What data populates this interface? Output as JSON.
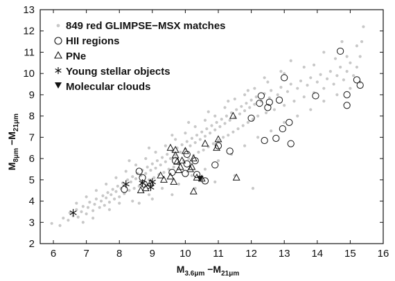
{
  "chart_data": {
    "type": "scatter",
    "title": "",
    "xlabel": {
      "main": "M",
      "sub1": "3.6μm",
      "mid": " −M",
      "sub2": "21μm"
    },
    "ylabel": {
      "main": "M",
      "sub1": "8μm",
      "mid": " −M",
      "sub2": "21μm"
    },
    "xlim": [
      5.6,
      16
    ],
    "ylim": [
      2,
      13
    ],
    "xticks": [
      6,
      7,
      8,
      9,
      10,
      11,
      12,
      13,
      14,
      15,
      16
    ],
    "yticks": [
      2,
      3,
      4,
      5,
      6,
      7,
      8,
      9,
      10,
      11,
      12,
      13
    ],
    "grid": false,
    "legend_position": "top-left",
    "legend": [
      {
        "label": "849 red GLIMPSE−MSX matches",
        "marker": "gray-dot"
      },
      {
        "label": "HII regions",
        "marker": "open-circle"
      },
      {
        "label": "PNe",
        "marker": "open-triangle"
      },
      {
        "label": "Young stellar objects",
        "marker": "asterisk"
      },
      {
        "label": "Molecular clouds",
        "marker": "filled-down-triangle"
      }
    ],
    "colors": {
      "background_points": "#c8c8c8",
      "markers": "#111111"
    },
    "series": [
      {
        "name": "849 red GLIMPSE−MSX matches",
        "marker": "gray-dot",
        "points": [
          [
            5.95,
            2.95
          ],
          [
            6.2,
            2.85
          ],
          [
            6.3,
            3.2
          ],
          [
            6.45,
            3.1
          ],
          [
            6.5,
            3.45
          ],
          [
            6.6,
            3.3
          ],
          [
            6.7,
            3.6
          ],
          [
            6.75,
            3.25
          ],
          [
            6.85,
            3.5
          ],
          [
            6.9,
            3.75
          ],
          [
            7.0,
            3.4
          ],
          [
            7.05,
            3.7
          ],
          [
            7.1,
            3.95
          ],
          [
            7.2,
            3.55
          ],
          [
            7.25,
            3.85
          ],
          [
            7.3,
            4.1
          ],
          [
            7.4,
            3.7
          ],
          [
            7.45,
            4.0
          ],
          [
            7.5,
            4.25
          ],
          [
            7.55,
            3.8
          ],
          [
            7.6,
            4.15
          ],
          [
            7.65,
            4.4
          ],
          [
            7.7,
            3.95
          ],
          [
            7.75,
            4.3
          ],
          [
            7.8,
            4.55
          ],
          [
            7.85,
            4.1
          ],
          [
            7.9,
            4.45
          ],
          [
            7.95,
            4.7
          ],
          [
            8.0,
            4.2
          ],
          [
            8.05,
            4.6
          ],
          [
            8.1,
            4.85
          ],
          [
            8.15,
            4.35
          ],
          [
            8.2,
            4.75
          ],
          [
            8.25,
            5.0
          ],
          [
            8.3,
            4.5
          ],
          [
            8.35,
            4.9
          ],
          [
            8.4,
            5.15
          ],
          [
            8.45,
            4.6
          ],
          [
            8.5,
            5.05
          ],
          [
            8.55,
            5.3
          ],
          [
            8.6,
            4.7
          ],
          [
            8.65,
            5.2
          ],
          [
            8.7,
            5.45
          ],
          [
            8.75,
            4.85
          ],
          [
            8.8,
            5.3
          ],
          [
            8.85,
            5.6
          ],
          [
            8.9,
            5.0
          ],
          [
            8.95,
            5.45
          ],
          [
            9.0,
            5.75
          ],
          [
            9.05,
            5.1
          ],
          [
            9.1,
            5.55
          ],
          [
            9.15,
            5.9
          ],
          [
            9.2,
            5.25
          ],
          [
            9.25,
            5.7
          ],
          [
            9.3,
            6.05
          ],
          [
            9.35,
            5.35
          ],
          [
            9.4,
            5.85
          ],
          [
            9.45,
            6.2
          ],
          [
            9.5,
            5.5
          ],
          [
            9.55,
            6.0
          ],
          [
            9.6,
            6.35
          ],
          [
            9.65,
            5.6
          ],
          [
            9.7,
            6.15
          ],
          [
            9.75,
            6.5
          ],
          [
            9.8,
            5.75
          ],
          [
            9.85,
            6.3
          ],
          [
            9.9,
            6.65
          ],
          [
            9.95,
            5.9
          ],
          [
            10.0,
            6.45
          ],
          [
            10.05,
            6.8
          ],
          [
            10.1,
            6.0
          ],
          [
            10.15,
            6.6
          ],
          [
            10.2,
            6.95
          ],
          [
            10.25,
            6.15
          ],
          [
            10.3,
            6.75
          ],
          [
            10.35,
            7.1
          ],
          [
            10.4,
            6.3
          ],
          [
            10.45,
            6.9
          ],
          [
            10.5,
            7.25
          ],
          [
            10.55,
            6.4
          ],
          [
            10.6,
            7.05
          ],
          [
            10.65,
            7.4
          ],
          [
            10.7,
            6.55
          ],
          [
            10.75,
            7.2
          ],
          [
            10.8,
            7.55
          ],
          [
            10.85,
            6.7
          ],
          [
            10.9,
            7.35
          ],
          [
            10.95,
            7.7
          ],
          [
            11.0,
            6.85
          ],
          [
            11.05,
            7.5
          ],
          [
            11.1,
            7.85
          ],
          [
            11.15,
            7.0
          ],
          [
            11.2,
            7.65
          ],
          [
            11.25,
            8.0
          ],
          [
            11.3,
            7.1
          ],
          [
            11.35,
            7.8
          ],
          [
            11.4,
            8.15
          ],
          [
            11.45,
            7.25
          ],
          [
            11.5,
            7.95
          ],
          [
            11.55,
            8.3
          ],
          [
            11.6,
            7.4
          ],
          [
            11.65,
            8.1
          ],
          [
            11.7,
            8.45
          ],
          [
            11.75,
            7.55
          ],
          [
            11.8,
            8.25
          ],
          [
            11.85,
            8.6
          ],
          [
            11.9,
            7.7
          ],
          [
            11.95,
            8.4
          ],
          [
            12.0,
            8.75
          ],
          [
            12.05,
            7.85
          ],
          [
            12.1,
            8.55
          ],
          [
            12.15,
            8.9
          ],
          [
            12.2,
            8.0
          ],
          [
            12.3,
            8.7
          ],
          [
            12.4,
            9.05
          ],
          [
            12.45,
            8.15
          ],
          [
            12.55,
            8.85
          ],
          [
            12.6,
            9.2
          ],
          [
            12.7,
            8.3
          ],
          [
            12.8,
            9.0
          ],
          [
            12.9,
            9.35
          ],
          [
            13.0,
            8.5
          ],
          [
            13.1,
            9.15
          ],
          [
            13.2,
            9.5
          ],
          [
            13.3,
            8.7
          ],
          [
            13.4,
            9.3
          ],
          [
            13.5,
            9.65
          ],
          [
            13.6,
            8.9
          ],
          [
            13.7,
            9.45
          ],
          [
            13.8,
            9.8
          ],
          [
            13.9,
            9.1
          ],
          [
            14.0,
            9.6
          ],
          [
            14.1,
            9.95
          ],
          [
            14.2,
            9.3
          ],
          [
            14.3,
            9.75
          ],
          [
            14.4,
            10.1
          ],
          [
            14.5,
            9.5
          ],
          [
            14.6,
            9.9
          ],
          [
            14.7,
            10.3
          ],
          [
            14.8,
            9.7
          ],
          [
            14.9,
            10.1
          ],
          [
            15.0,
            10.5
          ],
          [
            15.1,
            9.9
          ],
          [
            15.2,
            10.3
          ],
          [
            15.3,
            10.8
          ],
          [
            15.35,
            11.5
          ],
          [
            15.4,
            12.2
          ],
          [
            14.75,
            11.5
          ],
          [
            14.55,
            10.7
          ],
          [
            14.2,
            11.0
          ],
          [
            13.6,
            10.3
          ],
          [
            13.2,
            10.6
          ],
          [
            12.9,
            10.1
          ],
          [
            12.5,
            9.6
          ],
          [
            12.1,
            9.3
          ],
          [
            11.8,
            9.0
          ],
          [
            11.5,
            8.8
          ],
          [
            11.2,
            8.4
          ],
          [
            10.9,
            8.0
          ],
          [
            10.6,
            7.8
          ],
          [
            10.3,
            7.5
          ],
          [
            10.0,
            7.2
          ],
          [
            9.7,
            6.9
          ],
          [
            9.4,
            6.6
          ],
          [
            9.1,
            6.3
          ],
          [
            8.8,
            6.0
          ],
          [
            8.5,
            5.7
          ],
          [
            8.2,
            5.4
          ],
          [
            7.9,
            5.1
          ],
          [
            7.6,
            4.8
          ],
          [
            7.3,
            4.5
          ],
          [
            7.0,
            4.2
          ],
          [
            6.7,
            3.9
          ],
          [
            8.0,
            3.9
          ],
          [
            8.4,
            4.0
          ],
          [
            8.9,
            4.3
          ],
          [
            9.3,
            4.6
          ],
          [
            9.8,
            4.8
          ],
          [
            10.2,
            5.2
          ],
          [
            10.6,
            5.5
          ],
          [
            11.0,
            5.9
          ],
          [
            11.4,
            6.2
          ],
          [
            11.8,
            6.6
          ],
          [
            12.2,
            7.0
          ],
          [
            12.6,
            7.3
          ],
          [
            13.0,
            7.7
          ],
          [
            13.4,
            8.0
          ],
          [
            13.8,
            8.3
          ],
          [
            14.2,
            8.7
          ],
          [
            14.6,
            9.0
          ],
          [
            15.0,
            9.3
          ],
          [
            15.3,
            9.6
          ],
          [
            12.05,
            4.6
          ],
          [
            11.5,
            5.2
          ],
          [
            10.9,
            4.9
          ],
          [
            10.3,
            4.6
          ],
          [
            9.6,
            4.3
          ],
          [
            9.0,
            4.1
          ],
          [
            8.6,
            3.9
          ],
          [
            7.7,
            3.6
          ],
          [
            7.2,
            3.2
          ],
          [
            6.9,
            3.0
          ],
          [
            8.3,
            5.9
          ],
          [
            8.9,
            6.5
          ],
          [
            9.6,
            7.1
          ],
          [
            10.1,
            7.7
          ],
          [
            10.7,
            8.2
          ],
          [
            11.3,
            8.7
          ],
          [
            11.9,
            9.2
          ],
          [
            12.4,
            9.8
          ],
          [
            13.0,
            10.0
          ],
          [
            13.9,
            10.4
          ],
          [
            14.9,
            10.8
          ],
          [
            15.2,
            11.3
          ]
        ]
      },
      {
        "name": "HII regions",
        "marker": "open-circle",
        "points": [
          [
            8.15,
            4.55
          ],
          [
            8.6,
            5.4
          ],
          [
            8.7,
            5.1
          ],
          [
            8.75,
            4.8
          ],
          [
            9.6,
            5.35
          ],
          [
            9.7,
            5.9
          ],
          [
            10.0,
            5.3
          ],
          [
            10.05,
            5.75
          ],
          [
            10.05,
            6.2
          ],
          [
            10.3,
            5.9
          ],
          [
            10.35,
            5.25
          ],
          [
            10.6,
            4.95
          ],
          [
            10.9,
            5.7
          ],
          [
            11.0,
            6.6
          ],
          [
            11.35,
            6.35
          ],
          [
            12.0,
            7.9
          ],
          [
            12.25,
            8.6
          ],
          [
            12.3,
            8.95
          ],
          [
            12.4,
            6.85
          ],
          [
            12.5,
            8.4
          ],
          [
            12.55,
            8.65
          ],
          [
            12.75,
            6.95
          ],
          [
            12.85,
            8.75
          ],
          [
            12.95,
            7.4
          ],
          [
            13.0,
            9.8
          ],
          [
            13.15,
            7.7
          ],
          [
            13.2,
            6.7
          ],
          [
            13.95,
            8.95
          ],
          [
            14.7,
            11.05
          ],
          [
            14.9,
            9.0
          ],
          [
            14.9,
            8.5
          ],
          [
            15.2,
            9.7
          ],
          [
            15.3,
            9.45
          ]
        ]
      },
      {
        "name": "PNe",
        "marker": "open-triangle",
        "points": [
          [
            8.65,
            4.5
          ],
          [
            8.8,
            4.6
          ],
          [
            8.95,
            4.85
          ],
          [
            9.25,
            5.2
          ],
          [
            9.35,
            5.0
          ],
          [
            9.55,
            5.15
          ],
          [
            9.55,
            6.5
          ],
          [
            9.65,
            4.9
          ],
          [
            9.7,
            6.15
          ],
          [
            9.7,
            6.4
          ],
          [
            9.75,
            5.85
          ],
          [
            9.8,
            5.45
          ],
          [
            9.85,
            5.6
          ],
          [
            9.9,
            5.9
          ],
          [
            10.0,
            6.35
          ],
          [
            10.15,
            5.5
          ],
          [
            10.2,
            5.6
          ],
          [
            10.25,
            6.0
          ],
          [
            10.25,
            4.45
          ],
          [
            10.35,
            5.1
          ],
          [
            10.6,
            6.7
          ],
          [
            10.95,
            6.5
          ],
          [
            11.0,
            6.9
          ],
          [
            11.45,
            8.0
          ],
          [
            11.55,
            5.1
          ],
          [
            10.5,
            5.05
          ]
        ]
      },
      {
        "name": "Young stellar objects",
        "marker": "asterisk",
        "points": [
          [
            6.6,
            3.45
          ],
          [
            8.2,
            4.8
          ],
          [
            8.7,
            4.85
          ],
          [
            8.95,
            4.65
          ],
          [
            9.0,
            4.9
          ]
        ]
      },
      {
        "name": "Molecular clouds",
        "marker": "filled-down-triangle",
        "points": [
          [
            10.45,
            5.05
          ]
        ]
      }
    ]
  }
}
